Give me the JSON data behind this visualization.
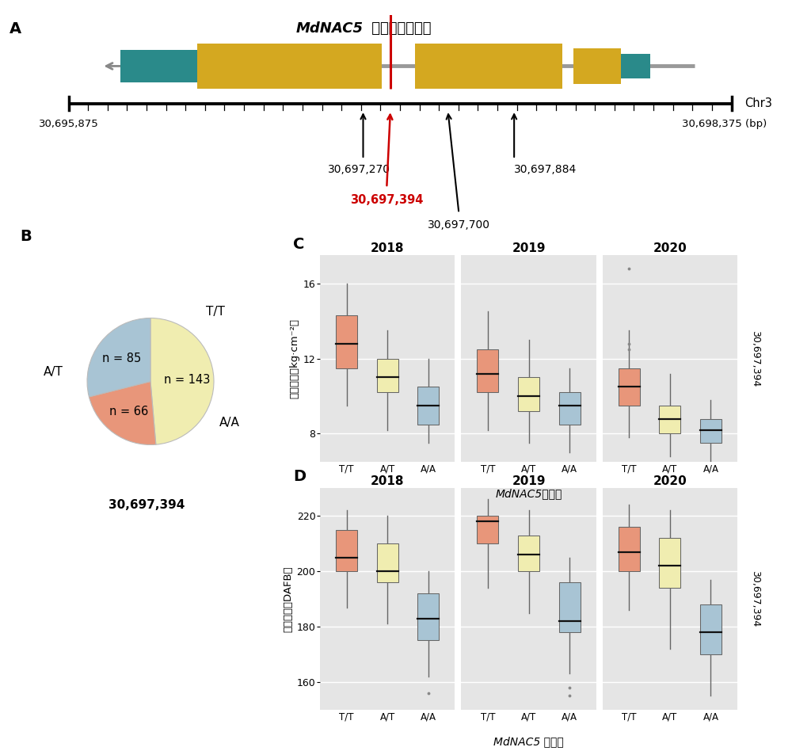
{
  "panel_A": {
    "title_italic": "MdNAC5",
    "title_normal": " 基因编码区结构",
    "chr_label": "Chr3",
    "left_pos": "30,695,875",
    "right_pos": "30,698,375 (bp)",
    "pos_270": "30,697,270",
    "pos_394": "30,697,394",
    "pos_884": "30,697,884",
    "pos_700": "30,697,700",
    "utr_color": "#2A8A8A",
    "exon_color": "#D4A820",
    "intron_color": "#999999",
    "red_color": "#CC0000"
  },
  "panel_B": {
    "sizes": [
      143,
      66,
      85
    ],
    "colors": [
      "#F0EDB0",
      "#E8967A",
      "#A8C4D4"
    ],
    "inner_labels": [
      "n = 143",
      "n = 66",
      "n = 85"
    ],
    "bottom_label": "30,697,394"
  },
  "panel_C": {
    "ylabel": "果肉硬度（kg·cm⁻²）",
    "xlabel": "MdNAC5基因型",
    "right_label": "30,697,394",
    "years": [
      "2018",
      "2019",
      "2020"
    ],
    "genotypes": [
      "T/T",
      "A/T",
      "A/A"
    ],
    "colors": [
      "#E8967A",
      "#F0EDB0",
      "#A8C4D4"
    ],
    "ylim": [
      6.5,
      17.5
    ],
    "yticks": [
      8,
      12,
      16
    ],
    "data": {
      "2018": {
        "T/T": {
          "q1": 11.5,
          "median": 12.8,
          "q3": 14.3,
          "whislo": 9.5,
          "whishi": 16.0,
          "fliers": []
        },
        "A/T": {
          "q1": 10.2,
          "median": 11.0,
          "q3": 12.0,
          "whislo": 8.2,
          "whishi": 13.5,
          "fliers": []
        },
        "A/A": {
          "q1": 8.5,
          "median": 9.5,
          "q3": 10.5,
          "whislo": 7.5,
          "whishi": 12.0,
          "fliers": []
        }
      },
      "2019": {
        "T/T": {
          "q1": 10.2,
          "median": 11.2,
          "q3": 12.5,
          "whislo": 8.2,
          "whishi": 14.5,
          "fliers": []
        },
        "A/T": {
          "q1": 9.2,
          "median": 10.0,
          "q3": 11.0,
          "whislo": 7.5,
          "whishi": 13.0,
          "fliers": []
        },
        "A/A": {
          "q1": 8.5,
          "median": 9.5,
          "q3": 10.2,
          "whislo": 7.0,
          "whishi": 11.5,
          "fliers": []
        }
      },
      "2020": {
        "T/T": {
          "q1": 9.5,
          "median": 10.5,
          "q3": 11.5,
          "whislo": 7.8,
          "whishi": 13.5,
          "fliers": [
            16.8,
            12.8,
            12.5
          ]
        },
        "A/T": {
          "q1": 8.0,
          "median": 8.8,
          "q3": 9.5,
          "whislo": 6.8,
          "whishi": 11.2,
          "fliers": []
        },
        "A/A": {
          "q1": 7.5,
          "median": 8.2,
          "q3": 8.8,
          "whislo": 6.5,
          "whishi": 9.8,
          "fliers": []
        }
      }
    }
  },
  "panel_D": {
    "ylabel": "花后天数（DAFB）",
    "xlabel": "MdNAC5 基因型",
    "right_label": "30,697,394",
    "years": [
      "2018",
      "2019",
      "2020"
    ],
    "genotypes": [
      "T/T",
      "A/T",
      "A/A"
    ],
    "colors": [
      "#E8967A",
      "#F0EDB0",
      "#A8C4D4"
    ],
    "ylim": [
      150,
      230
    ],
    "yticks": [
      160,
      180,
      200,
      220
    ],
    "data": {
      "2018": {
        "T/T": {
          "q1": 200,
          "median": 205,
          "q3": 215,
          "whislo": 187,
          "whishi": 222,
          "fliers": []
        },
        "A/T": {
          "q1": 196,
          "median": 200,
          "q3": 210,
          "whislo": 181,
          "whishi": 220,
          "fliers": []
        },
        "A/A": {
          "q1": 175,
          "median": 183,
          "q3": 192,
          "whislo": 162,
          "whishi": 200,
          "fliers": [
            156
          ]
        }
      },
      "2019": {
        "T/T": {
          "q1": 210,
          "median": 218,
          "q3": 220,
          "whislo": 194,
          "whishi": 226,
          "fliers": []
        },
        "A/T": {
          "q1": 200,
          "median": 206,
          "q3": 213,
          "whislo": 185,
          "whishi": 222,
          "fliers": []
        },
        "A/A": {
          "q1": 178,
          "median": 182,
          "q3": 196,
          "whislo": 163,
          "whishi": 205,
          "fliers": [
            155,
            158
          ]
        }
      },
      "2020": {
        "T/T": {
          "q1": 200,
          "median": 207,
          "q3": 216,
          "whislo": 186,
          "whishi": 224,
          "fliers": []
        },
        "A/T": {
          "q1": 194,
          "median": 202,
          "q3": 212,
          "whislo": 172,
          "whishi": 222,
          "fliers": []
        },
        "A/A": {
          "q1": 170,
          "median": 178,
          "q3": 188,
          "whislo": 155,
          "whishi": 197,
          "fliers": []
        }
      }
    }
  }
}
